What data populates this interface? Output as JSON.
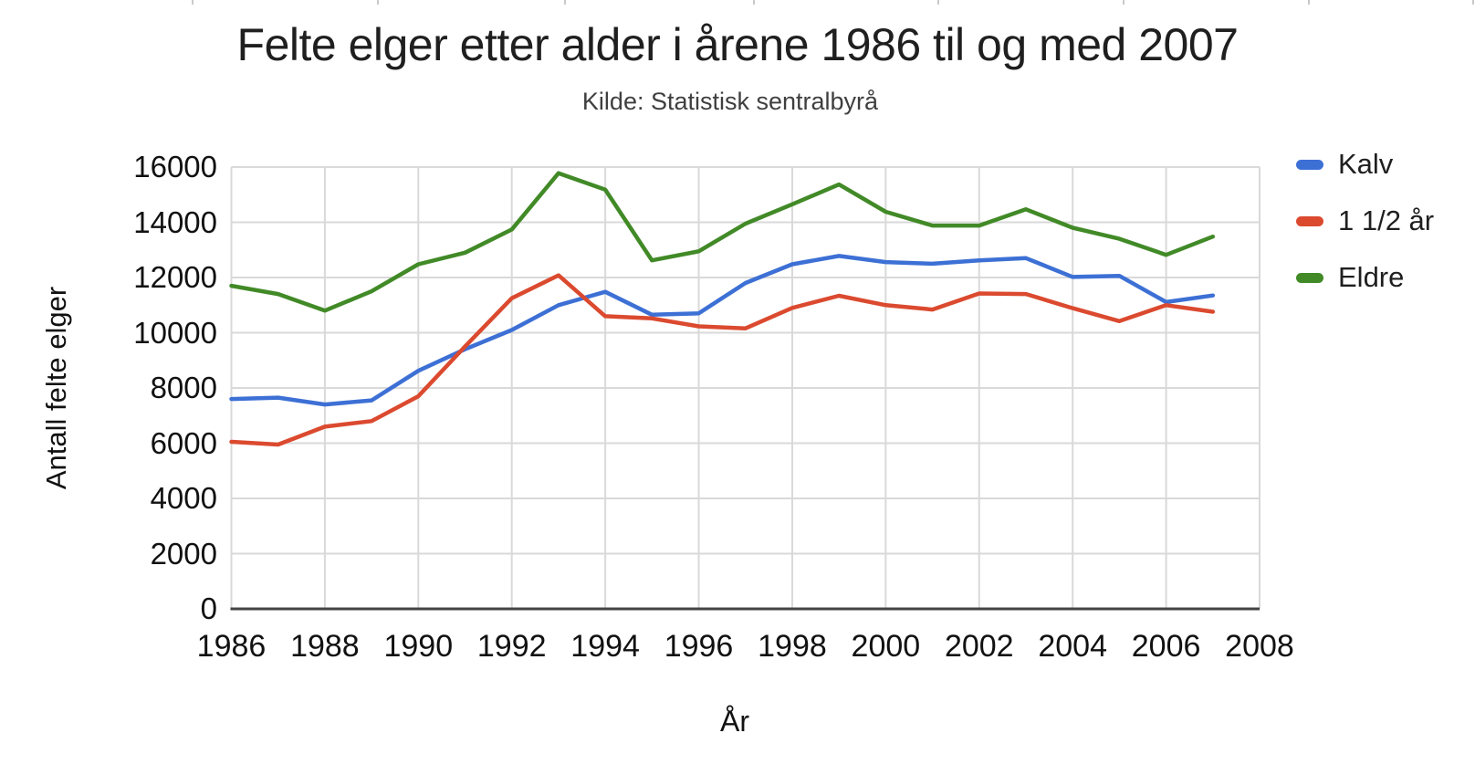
{
  "chart": {
    "title": "Felte elger etter alder i årene 1986 til og med 2007",
    "subtitle": "Kilde: Statistisk sentralbyrå",
    "x_axis_title": "År",
    "y_axis_title": "Antall felte elger",
    "colors": {
      "grid": "#d9d9d9",
      "axis": "#424242",
      "tick_text": "#111111",
      "series_blue": "#3D70D5",
      "series_red": "#DB4A2F",
      "series_green": "#418A27"
    }
  },
  "chart_data": {
    "type": "line",
    "x": [
      1986,
      1987,
      1988,
      1989,
      1990,
      1991,
      1992,
      1993,
      1994,
      1995,
      1996,
      1997,
      1998,
      1999,
      2000,
      2001,
      2002,
      2003,
      2004,
      2005,
      2006,
      2007
    ],
    "series": [
      {
        "name": "Kalv",
        "color": "#3D70D5",
        "values": [
          7600,
          7650,
          7400,
          7550,
          8620,
          9400,
          10100,
          11000,
          11480,
          10650,
          10700,
          11800,
          12480,
          12780,
          12560,
          12500,
          12620,
          12700,
          12020,
          12060,
          11110,
          11350
        ]
      },
      {
        "name": "1 1/2 år",
        "color": "#DB4A2F",
        "values": [
          6050,
          5950,
          6600,
          6800,
          7700,
          9500,
          11250,
          12080,
          10600,
          10520,
          10230,
          10160,
          10900,
          11340,
          11000,
          10840,
          11420,
          11400,
          10890,
          10420,
          11000,
          10760
        ]
      },
      {
        "name": "Eldre",
        "color": "#418A27",
        "values": [
          11700,
          11400,
          10800,
          11500,
          12480,
          12900,
          13740,
          15780,
          15180,
          12620,
          12950,
          13950,
          14650,
          15370,
          14380,
          13880,
          13880,
          14470,
          13800,
          13400,
          12820,
          13480
        ]
      }
    ],
    "x_ticks": [
      1986,
      1988,
      1990,
      1992,
      1994,
      1996,
      1998,
      2000,
      2002,
      2004,
      2006,
      2008
    ],
    "y_ticks": [
      0,
      2000,
      4000,
      6000,
      8000,
      10000,
      12000,
      14000,
      16000
    ],
    "xlim": [
      1986,
      2008
    ],
    "ylim": [
      0,
      16000
    ],
    "grid": true,
    "legend_position": "right"
  }
}
